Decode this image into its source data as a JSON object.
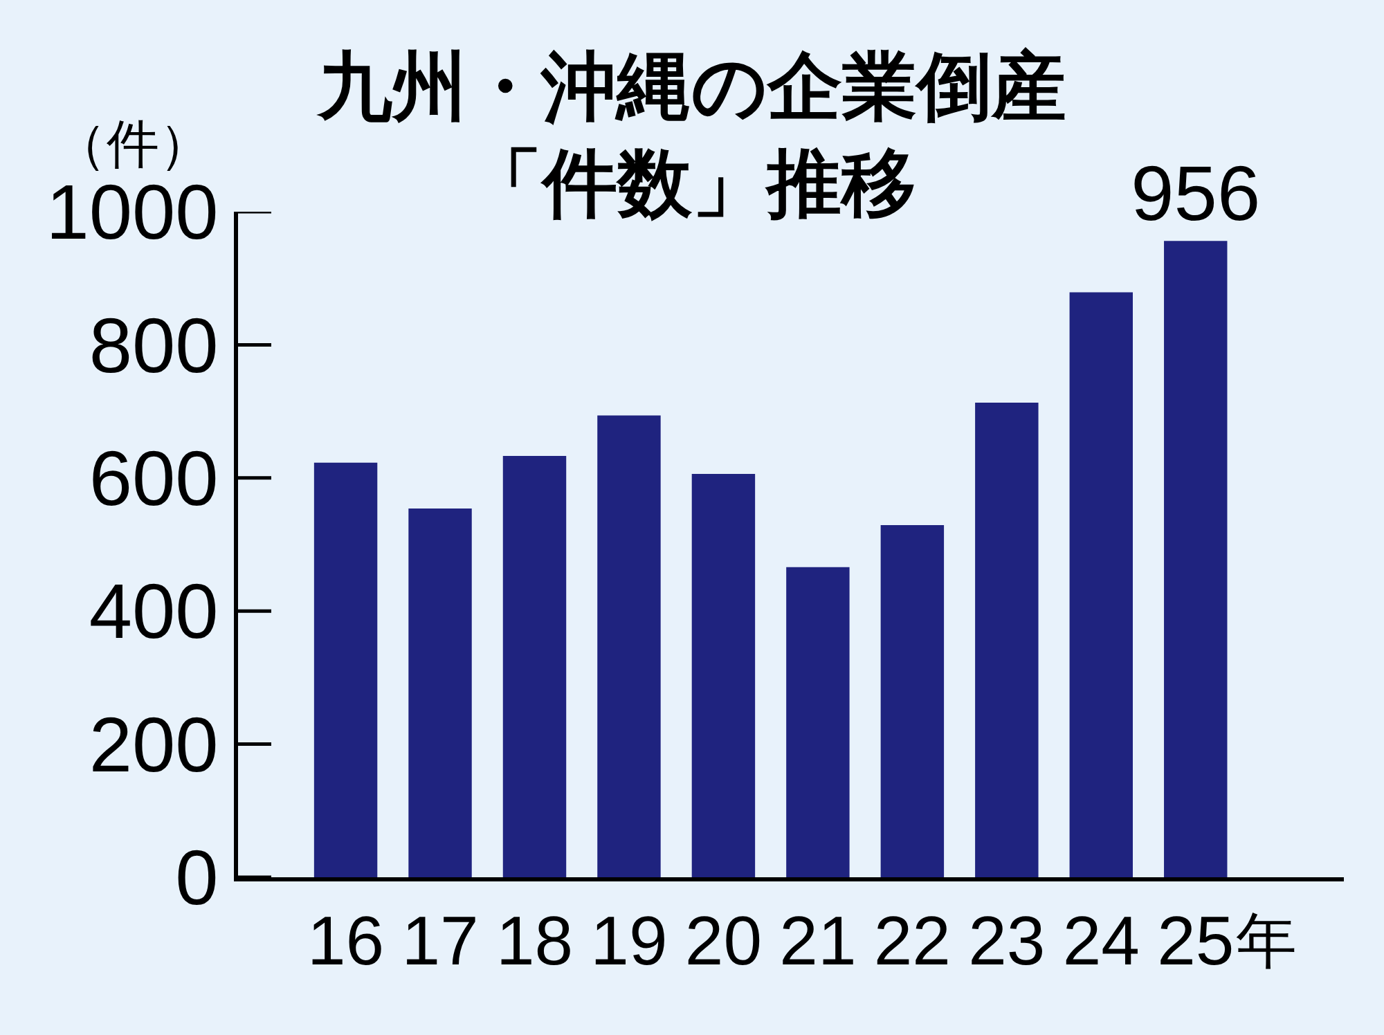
{
  "chart_data": {
    "type": "bar",
    "title": "九州・沖縄の企業倒産「件数」推移",
    "ylabel": "（件）",
    "xlabel": "年",
    "categories": [
      "16",
      "17",
      "18",
      "19",
      "20",
      "21",
      "22",
      "23",
      "24",
      "25"
    ],
    "values": [
      623,
      554,
      633,
      694,
      606,
      466,
      529,
      713,
      879,
      956
    ],
    "value_labels": [
      null,
      null,
      null,
      null,
      null,
      null,
      null,
      null,
      null,
      "956"
    ],
    "color": "#1f237f",
    "ylim": [
      0,
      1000
    ],
    "yticks": [
      0,
      200,
      400,
      600,
      800,
      1000
    ]
  }
}
